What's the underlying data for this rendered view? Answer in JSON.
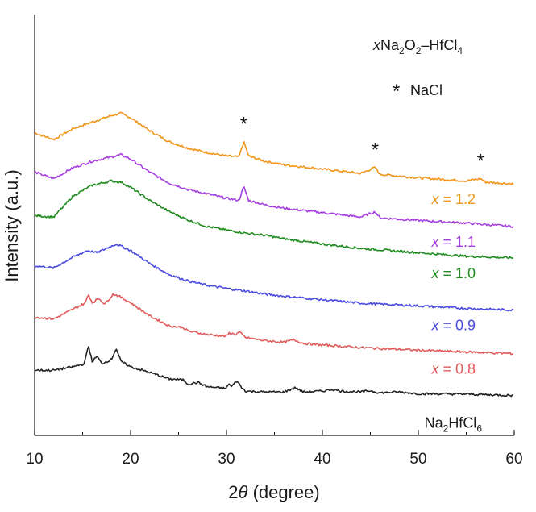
{
  "chart_data": {
    "type": "line",
    "xlabel_prefix": "2",
    "xlabel_var": "θ",
    "xlabel_suffix": " (degree)",
    "ylabel": "Intensity (a.u.)",
    "xlim": [
      10,
      60
    ],
    "x_ticks": [
      10,
      20,
      30,
      40,
      50,
      60
    ],
    "grid": false,
    "annotation_title": {
      "x": "x",
      "a": "Na",
      "s1": "2",
      "b": "O",
      "s2": "2",
      "c": "–HfCl",
      "s3": "4"
    },
    "legend_star": "NaCl",
    "star_marker": "*",
    "stars": [
      {
        "x": 31.8,
        "y_offset_units": 0.3
      },
      {
        "x": 45.5,
        "y_offset_units": 0.3
      },
      {
        "x": 56.5,
        "y_offset_units": 0.3
      }
    ],
    "series": [
      {
        "name_var": "x",
        "name_val": " = 1.2",
        "color": "#f0951a",
        "baseline": 4.0,
        "points": [
          [
            10,
            1.65
          ],
          [
            12,
            1.5
          ],
          [
            14,
            1.75
          ],
          [
            16,
            1.9
          ],
          [
            18,
            2.05
          ],
          [
            19,
            2.1
          ],
          [
            20,
            2.0
          ],
          [
            22,
            1.7
          ],
          [
            24,
            1.45
          ],
          [
            26,
            1.3
          ],
          [
            28,
            1.2
          ],
          [
            30,
            1.12
          ],
          [
            31.3,
            1.1
          ],
          [
            31.8,
            1.45
          ],
          [
            32.3,
            1.12
          ],
          [
            34,
            1.0
          ],
          [
            36,
            0.92
          ],
          [
            40,
            0.82
          ],
          [
            44,
            0.72
          ],
          [
            45.5,
            0.86
          ],
          [
            46,
            0.7
          ],
          [
            50,
            0.62
          ],
          [
            55,
            0.55
          ],
          [
            56.5,
            0.6
          ],
          [
            57,
            0.52
          ],
          [
            60,
            0.48
          ]
        ]
      },
      {
        "name_var": "x",
        "name_val": " = 1.1",
        "color": "#a63fe0",
        "baseline": 3.0,
        "points": [
          [
            10,
            1.75
          ],
          [
            12,
            1.6
          ],
          [
            14,
            1.85
          ],
          [
            16,
            2.0
          ],
          [
            18,
            2.1
          ],
          [
            19,
            2.15
          ],
          [
            20,
            2.05
          ],
          [
            22,
            1.75
          ],
          [
            24,
            1.5
          ],
          [
            26,
            1.35
          ],
          [
            28,
            1.25
          ],
          [
            30,
            1.15
          ],
          [
            31.3,
            1.1
          ],
          [
            31.8,
            1.42
          ],
          [
            32.3,
            1.1
          ],
          [
            34,
            1.0
          ],
          [
            36,
            0.92
          ],
          [
            40,
            0.82
          ],
          [
            44,
            0.72
          ],
          [
            45.5,
            0.84
          ],
          [
            46,
            0.7
          ],
          [
            50,
            0.64
          ],
          [
            55,
            0.58
          ],
          [
            60,
            0.5
          ]
        ]
      },
      {
        "name_var": "x",
        "name_val": " = 1.0",
        "color": "#1f8a1f",
        "baseline": 2.0,
        "points": [
          [
            10,
            1.75
          ],
          [
            12,
            1.72
          ],
          [
            14,
            2.2
          ],
          [
            16,
            2.45
          ],
          [
            17,
            2.5
          ],
          [
            18,
            2.55
          ],
          [
            19,
            2.52
          ],
          [
            20,
            2.4
          ],
          [
            22,
            2.1
          ],
          [
            24,
            1.85
          ],
          [
            26,
            1.65
          ],
          [
            28,
            1.5
          ],
          [
            30,
            1.42
          ],
          [
            32,
            1.35
          ],
          [
            34,
            1.3
          ],
          [
            36,
            1.22
          ],
          [
            40,
            1.1
          ],
          [
            44,
            1.0
          ],
          [
            50,
            0.9
          ],
          [
            55,
            0.82
          ],
          [
            60,
            0.78
          ]
        ]
      },
      {
        "name_var": "x",
        "name_val": " = 0.9",
        "color": "#4b4be0",
        "baseline": 1.0,
        "points": [
          [
            10,
            1.6
          ],
          [
            12,
            1.55
          ],
          [
            14,
            1.8
          ],
          [
            15.5,
            1.95
          ],
          [
            16.5,
            1.9
          ],
          [
            18,
            2.05
          ],
          [
            18.5,
            2.1
          ],
          [
            20,
            1.95
          ],
          [
            22,
            1.65
          ],
          [
            24,
            1.4
          ],
          [
            26,
            1.25
          ],
          [
            28,
            1.15
          ],
          [
            30,
            1.08
          ],
          [
            32,
            1.02
          ],
          [
            34,
            0.95
          ],
          [
            36,
            0.9
          ],
          [
            40,
            0.82
          ],
          [
            44,
            0.74
          ],
          [
            50,
            0.68
          ],
          [
            55,
            0.62
          ],
          [
            60,
            0.58
          ]
        ]
      },
      {
        "name_var": "x",
        "name_val": " = 0.8",
        "color": "#e05a5a",
        "baseline": 0.0,
        "points": [
          [
            10,
            1.42
          ],
          [
            12,
            1.38
          ],
          [
            14,
            1.6
          ],
          [
            15.3,
            1.75
          ],
          [
            15.6,
            1.95
          ],
          [
            16,
            1.75
          ],
          [
            16.7,
            1.85
          ],
          [
            17.3,
            1.72
          ],
          [
            18.2,
            1.95
          ],
          [
            18.6,
            1.92
          ],
          [
            20,
            1.75
          ],
          [
            22,
            1.45
          ],
          [
            24,
            1.22
          ],
          [
            25.5,
            1.18
          ],
          [
            26,
            1.1
          ],
          [
            28,
            1.02
          ],
          [
            30,
            0.98
          ],
          [
            30.3,
            1.06
          ],
          [
            31,
            1.02
          ],
          [
            31.3,
            1.08
          ],
          [
            32,
            0.95
          ],
          [
            34,
            0.88
          ],
          [
            36,
            0.84
          ],
          [
            37,
            0.9
          ],
          [
            38,
            0.82
          ],
          [
            40,
            0.78
          ],
          [
            44,
            0.72
          ],
          [
            50,
            0.66
          ],
          [
            55,
            0.62
          ],
          [
            60,
            0.58
          ]
        ]
      },
      {
        "name_chem": {
          "a": "Na",
          "s1": "2",
          "b": "HfCl",
          "s2": "6"
        },
        "color": "#222222",
        "baseline": -1.0,
        "points": [
          [
            10,
            1.2
          ],
          [
            12,
            1.2
          ],
          [
            14,
            1.28
          ],
          [
            15.2,
            1.35
          ],
          [
            15.6,
            1.78
          ],
          [
            16,
            1.4
          ],
          [
            16.5,
            1.52
          ],
          [
            17,
            1.35
          ],
          [
            18,
            1.45
          ],
          [
            18.5,
            1.7
          ],
          [
            19,
            1.4
          ],
          [
            20,
            1.28
          ],
          [
            22,
            1.15
          ],
          [
            24,
            1.0
          ],
          [
            25.5,
            0.98
          ],
          [
            26,
            0.88
          ],
          [
            27,
            0.92
          ],
          [
            28,
            0.82
          ],
          [
            30,
            0.78
          ],
          [
            30.2,
            0.9
          ],
          [
            30.5,
            0.82
          ],
          [
            31.1,
            0.96
          ],
          [
            31.5,
            0.82
          ],
          [
            32,
            0.72
          ],
          [
            34,
            0.7
          ],
          [
            36,
            0.7
          ],
          [
            37.2,
            0.8
          ],
          [
            38,
            0.7
          ],
          [
            40,
            0.72
          ],
          [
            41,
            0.76
          ],
          [
            42,
            0.72
          ],
          [
            44,
            0.7
          ],
          [
            45,
            0.73
          ],
          [
            46,
            0.68
          ],
          [
            48,
            0.7
          ],
          [
            50,
            0.66
          ],
          [
            55,
            0.65
          ],
          [
            60,
            0.62
          ]
        ]
      }
    ]
  }
}
